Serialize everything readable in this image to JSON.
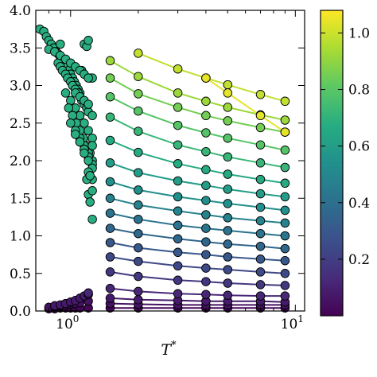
{
  "chart_data": {
    "type": "scatter",
    "xlabel": "T",
    "xlabel_superscript": "*",
    "ylabel": "",
    "title": "",
    "x_scale": "log",
    "xlim": [
      0.7,
      11
    ],
    "ylim": [
      0.0,
      4.0
    ],
    "grid": false,
    "colormap": "viridis",
    "colorbar": {
      "range": [
        0.0,
        1.08
      ],
      "ticks": [
        {
          "value": 0.2,
          "label": "0.2"
        },
        {
          "value": 0.4,
          "label": "0.4"
        },
        {
          "value": 0.6,
          "label": "0.6"
        },
        {
          "value": 0.8,
          "label": "0.8"
        },
        {
          "value": 1.0,
          "label": "1.0"
        }
      ]
    },
    "x_ticks": [
      {
        "value": 1,
        "label": "10",
        "exp": "0"
      },
      {
        "value": 10,
        "label": "10",
        "exp": "1"
      }
    ],
    "y_ticks": [
      {
        "value": 0.0,
        "label": "0.0"
      },
      {
        "value": 0.5,
        "label": "0.5"
      },
      {
        "value": 1.0,
        "label": "1.0"
      },
      {
        "value": 1.5,
        "label": "1.5"
      },
      {
        "value": 2.0,
        "label": "2.0"
      },
      {
        "value": 2.5,
        "label": "2.5"
      },
      {
        "value": 3.0,
        "label": "3.0"
      },
      {
        "value": 3.5,
        "label": "3.5"
      },
      {
        "value": 4.0,
        "label": "4.0"
      }
    ],
    "series": [
      {
        "c": 0.02,
        "x": [
          0.8,
          0.85,
          0.9,
          0.95,
          1.0,
          1.05,
          1.1,
          1.2,
          1.5,
          2.0,
          3.0,
          4.0,
          5.0,
          7.0,
          9.0
        ],
        "y": [
          0.03,
          0.03,
          0.04,
          0.04,
          0.04,
          0.04,
          0.04,
          0.04,
          0.04,
          0.04,
          0.04,
          0.04,
          0.04,
          0.04,
          0.04
        ],
        "line_from": 8
      },
      {
        "c": 0.05,
        "x": [
          0.8,
          0.85,
          0.9,
          0.95,
          1.0,
          1.05,
          1.1,
          1.2,
          1.5,
          2.0,
          3.0,
          4.0,
          5.0,
          7.0,
          9.0
        ],
        "y": [
          0.05,
          0.06,
          0.07,
          0.08,
          0.09,
          0.1,
          0.11,
          0.13,
          0.1,
          0.09,
          0.08,
          0.08,
          0.08,
          0.08,
          0.08
        ],
        "line_from": 8
      },
      {
        "c": 0.08,
        "x": [
          0.85,
          0.9,
          0.95,
          1.0,
          1.05,
          1.1,
          1.15,
          1.2,
          1.5,
          2.0,
          3.0,
          4.0,
          5.0,
          7.0,
          9.0
        ],
        "y": [
          0.07,
          0.08,
          0.1,
          0.12,
          0.14,
          0.17,
          0.2,
          0.22,
          0.17,
          0.15,
          0.14,
          0.13,
          0.13,
          0.13,
          0.12
        ],
        "line_from": 8
      },
      {
        "c": 0.12,
        "x": [
          1.2,
          1.5,
          2.0,
          3.0,
          4.0,
          5.0,
          7.0,
          9.0
        ],
        "y": [
          0.24,
          0.3,
          0.26,
          0.23,
          0.22,
          0.21,
          0.2,
          0.2
        ],
        "line_from": 1
      },
      {
        "c": 0.18,
        "x": [
          1.5,
          2.0,
          3.0,
          4.0,
          5.0,
          7.0,
          9.0
        ],
        "y": [
          0.52,
          0.46,
          0.41,
          0.39,
          0.37,
          0.35,
          0.34
        ],
        "line_from": 0
      },
      {
        "c": 0.24,
        "x": [
          1.5,
          2.0,
          3.0,
          4.0,
          5.0,
          7.0,
          9.0
        ],
        "y": [
          0.72,
          0.66,
          0.6,
          0.57,
          0.55,
          0.52,
          0.5
        ],
        "line_from": 0
      },
      {
        "c": 0.3,
        "x": [
          1.5,
          2.0,
          3.0,
          4.0,
          5.0,
          7.0,
          9.0
        ],
        "y": [
          0.91,
          0.84,
          0.78,
          0.75,
          0.72,
          0.69,
          0.67
        ],
        "line_from": 0
      },
      {
        "c": 0.36,
        "x": [
          1.5,
          2.0,
          3.0,
          4.0,
          5.0,
          7.0,
          9.0
        ],
        "y": [
          1.1,
          1.03,
          0.96,
          0.92,
          0.89,
          0.86,
          0.83
        ],
        "line_from": 0
      },
      {
        "c": 0.42,
        "x": [
          1.5,
          2.0,
          3.0,
          4.0,
          5.0,
          7.0,
          9.0
        ],
        "y": [
          1.3,
          1.22,
          1.14,
          1.1,
          1.07,
          1.03,
          1.0
        ],
        "line_from": 0
      },
      {
        "c": 0.48,
        "x": [
          1.5,
          2.0,
          3.0,
          4.0,
          5.0,
          7.0,
          9.0
        ],
        "y": [
          1.5,
          1.41,
          1.33,
          1.28,
          1.24,
          1.2,
          1.17
        ],
        "line_from": 0
      },
      {
        "c": 0.54,
        "x": [
          1.5,
          2.0,
          3.0,
          4.0,
          5.0,
          7.0,
          9.0
        ],
        "y": [
          1.72,
          1.61,
          1.52,
          1.47,
          1.43,
          1.38,
          1.34
        ],
        "line_from": 0
      },
      {
        "c": 0.6,
        "x": [
          1.5,
          2.0,
          3.0,
          4.0,
          5.0,
          7.0,
          9.0
        ],
        "y": [
          1.97,
          1.84,
          1.73,
          1.67,
          1.62,
          1.56,
          1.52
        ],
        "line_from": 0
      },
      {
        "c": 0.66,
        "x": [
          1.5,
          2.0,
          3.0,
          4.0,
          5.0,
          7.0,
          9.0
        ],
        "y": [
          2.27,
          2.11,
          1.96,
          1.88,
          1.82,
          1.75,
          1.7
        ],
        "line_from": 0
      },
      {
        "c": 0.72,
        "x": [
          1.5,
          2.0,
          3.0,
          4.0,
          5.0,
          7.0,
          9.0
        ],
        "y": [
          2.58,
          2.39,
          2.21,
          2.12,
          2.05,
          1.97,
          1.91
        ],
        "line_from": 0
      },
      {
        "c": 0.79,
        "x": [
          1.5,
          2.0,
          3.0,
          4.0,
          5.0,
          7.0,
          9.0
        ],
        "y": [
          2.85,
          2.66,
          2.47,
          2.37,
          2.3,
          2.21,
          2.14
        ],
        "line_from": 0
      },
      {
        "c": 0.85,
        "x": [
          1.5,
          2.0,
          3.0,
          4.0,
          5.0,
          7.0,
          9.0
        ],
        "y": [
          3.1,
          2.89,
          2.71,
          2.6,
          2.53,
          2.44,
          2.38
        ],
        "line_from": 0
      },
      {
        "c": 0.92,
        "x": [
          1.5,
          2.0,
          3.0,
          4.0,
          5.0,
          7.0,
          9.0
        ],
        "y": [
          3.33,
          3.12,
          2.9,
          2.79,
          2.71,
          2.61,
          2.54
        ],
        "line_from": 0
      },
      {
        "c": 0.98,
        "x": [
          2.0,
          3.0,
          4.0,
          5.0,
          7.0,
          9.0
        ],
        "y": [
          3.43,
          3.22,
          3.1,
          3.01,
          2.88,
          2.79
        ],
        "line_from": 0
      },
      {
        "c": 1.04,
        "x": [
          4.0,
          5.0,
          7.0,
          9.0
        ],
        "y": [
          3.1,
          2.9,
          2.6,
          2.38
        ],
        "line_from": 0
      }
    ],
    "cluster_points": {
      "c": 0.68,
      "x": [
        0.73,
        0.76,
        0.78,
        0.8,
        0.82,
        0.84,
        0.86,
        0.88,
        0.9,
        0.9,
        0.92,
        0.94,
        0.95,
        0.96,
        0.98,
        1.0,
        1.02,
        1.04,
        1.06,
        1.08,
        1.1,
        1.12,
        1.15,
        1.18,
        1.2,
        1.22,
        1.25,
        0.88,
        0.9,
        0.92,
        0.95,
        0.97,
        1.0,
        1.02,
        1.05,
        1.08,
        1.1,
        1.12,
        1.15,
        1.18,
        1.2,
        0.95,
        1.0,
        1.05,
        1.1,
        1.15,
        1.2,
        1.25,
        0.98,
        1.02,
        1.06,
        1.1,
        1.14,
        1.18,
        1.22,
        1.0,
        1.05,
        1.1,
        1.15,
        1.2,
        1.25,
        1.05,
        1.1,
        1.15,
        1.2,
        1.1,
        1.15,
        1.2,
        1.25,
        1.15,
        1.2,
        1.25,
        1.2,
        1.25,
        1.2,
        1.22,
        1.25,
        1.25,
        1.18,
        1.22,
        1.25,
        0.8,
        0.85,
        0.9,
        0.95,
        1.0,
        1.05,
        1.1,
        1.15,
        1.2,
        1.05,
        1.1,
        1.15,
        1.2,
        1.25
      ],
      "y": [
        3.75,
        3.72,
        3.65,
        3.6,
        3.55,
        3.5,
        3.45,
        3.42,
        3.38,
        3.55,
        3.35,
        3.3,
        3.28,
        3.25,
        3.2,
        3.15,
        3.1,
        3.05,
        3.0,
        2.95,
        2.9,
        3.2,
        3.55,
        3.52,
        3.6,
        3.1,
        3.1,
        3.3,
        3.25,
        3.2,
        3.15,
        3.1,
        3.05,
        3.0,
        2.95,
        2.9,
        2.85,
        2.8,
        2.75,
        2.7,
        2.65,
        2.9,
        2.8,
        2.7,
        2.6,
        2.5,
        2.4,
        2.3,
        2.7,
        2.6,
        2.5,
        2.4,
        2.3,
        2.2,
        2.1,
        2.5,
        2.4,
        2.3,
        2.2,
        2.1,
        2.0,
        2.35,
        2.25,
        2.15,
        2.05,
        2.25,
        2.15,
        2.05,
        1.95,
        2.1,
        2.0,
        1.9,
        1.85,
        1.75,
        1.55,
        1.45,
        1.22,
        1.6,
        1.75,
        1.8,
        2.2,
        3.48,
        3.45,
        3.4,
        3.35,
        3.3,
        3.25,
        3.2,
        3.15,
        3.1,
        2.9,
        2.85,
        2.8,
        2.75,
        2.6
      ]
    }
  }
}
